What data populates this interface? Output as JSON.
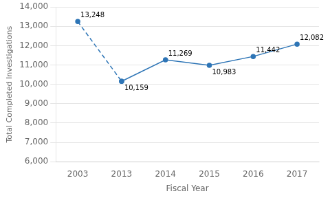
{
  "chart_data": {
    "type": "line",
    "categories": [
      "2003",
      "2013",
      "2014",
      "2015",
      "2016",
      "2017"
    ],
    "series": [
      {
        "color": "#2E75B6",
        "marker": "circle",
        "line_style": "dashed",
        "values": [
          13248,
          10159,
          null,
          null,
          null,
          null
        ]
      },
      {
        "color": "#2E75B6",
        "marker": "circle",
        "line_style": "solid",
        "values": [
          null,
          10159,
          11269,
          10983,
          11442,
          12082
        ]
      }
    ],
    "annotations": [
      {
        "x": "2003",
        "y": 13248,
        "label": "13,248"
      },
      {
        "x": "2013",
        "y": 10159,
        "label": "10,159"
      },
      {
        "x": "2014",
        "y": 11269,
        "label": "11,269"
      },
      {
        "x": "2015",
        "y": 10983,
        "label": "10,983"
      },
      {
        "x": "2016",
        "y": 11442,
        "label": "11,442"
      },
      {
        "x": "2017",
        "y": 12082,
        "label": "12,082"
      }
    ],
    "xlabel": "Fiscal Year",
    "ylabel": "Total Completed Investigations",
    "ylim": [
      6000,
      14000
    ],
    "yticks": [
      {
        "value": 6000,
        "label": "6,000"
      },
      {
        "value": 7000,
        "label": "7,000"
      },
      {
        "value": 8000,
        "label": "8,000"
      },
      {
        "value": 9000,
        "label": "9,000"
      },
      {
        "value": 10000,
        "label": "10,000"
      },
      {
        "value": 11000,
        "label": "11,000"
      },
      {
        "value": 12000,
        "label": "12,000"
      },
      {
        "value": 13000,
        "label": "13,000"
      },
      {
        "value": 14000,
        "label": "14,000"
      }
    ],
    "grid": "y"
  }
}
